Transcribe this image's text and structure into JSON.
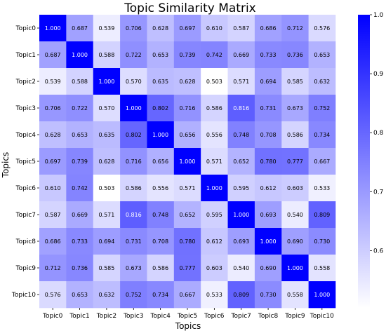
{
  "chart_data": {
    "type": "heatmap",
    "title": "Topic Similarity Matrix",
    "xlabel": "Topics",
    "ylabel": "Topics",
    "x_categories": [
      "Topic0",
      "Topic1",
      "Topic2",
      "Topic3",
      "Topic4",
      "Topic5",
      "Topic6",
      "Topic7",
      "Topic8",
      "Topic9",
      "Topic10"
    ],
    "y_categories": [
      "Topic0",
      "Topic1",
      "Topic2",
      "Topic3",
      "Topic4",
      "Topic5",
      "Topic6",
      "Topic7",
      "Topic8",
      "Topic9",
      "Topic10"
    ],
    "values": [
      [
        1.0,
        0.687,
        0.539,
        0.706,
        0.628,
        0.697,
        0.61,
        0.587,
        0.686,
        0.712,
        0.576
      ],
      [
        0.687,
        1.0,
        0.588,
        0.722,
        0.653,
        0.739,
        0.742,
        0.669,
        0.733,
        0.736,
        0.653
      ],
      [
        0.539,
        0.588,
        1.0,
        0.57,
        0.635,
        0.628,
        0.503,
        0.571,
        0.694,
        0.585,
        0.632
      ],
      [
        0.706,
        0.722,
        0.57,
        1.0,
        0.802,
        0.716,
        0.586,
        0.816,
        0.731,
        0.673,
        0.752
      ],
      [
        0.628,
        0.653,
        0.635,
        0.802,
        1.0,
        0.656,
        0.556,
        0.748,
        0.708,
        0.586,
        0.734
      ],
      [
        0.697,
        0.739,
        0.628,
        0.716,
        0.656,
        1.0,
        0.571,
        0.652,
        0.78,
        0.777,
        0.667
      ],
      [
        0.61,
        0.742,
        0.503,
        0.586,
        0.556,
        0.571,
        1.0,
        0.595,
        0.612,
        0.603,
        0.533
      ],
      [
        0.587,
        0.669,
        0.571,
        0.816,
        0.748,
        0.652,
        0.595,
        1.0,
        0.693,
        0.54,
        0.809
      ],
      [
        0.686,
        0.733,
        0.694,
        0.731,
        0.708,
        0.78,
        0.612,
        0.693,
        1.0,
        0.69,
        0.73
      ],
      [
        0.712,
        0.736,
        0.585,
        0.673,
        0.586,
        0.777,
        0.603,
        0.54,
        0.69,
        1.0,
        0.558
      ],
      [
        0.576,
        0.653,
        0.632,
        0.752,
        0.734,
        0.667,
        0.533,
        0.809,
        0.73,
        0.558,
        1.0
      ]
    ],
    "colorbar": {
      "range": [
        0.503,
        1.0
      ],
      "ticks": [
        "0.6",
        "0.7",
        "0.8",
        "0.9",
        "1.0"
      ],
      "low_color": "#ffffff",
      "high_color": "#0000ff"
    },
    "grid": false,
    "legend": "colorbar-right"
  }
}
